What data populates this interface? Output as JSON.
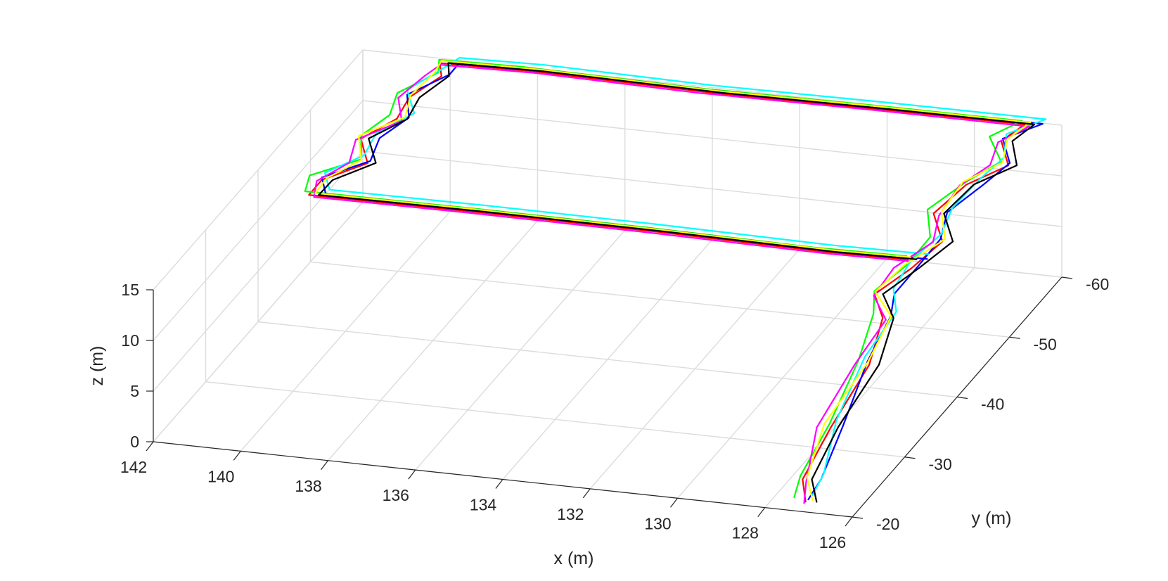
{
  "chart_data": {
    "type": "line",
    "dimensions": 3,
    "xlabel": "x (m)",
    "ylabel": "y (m)",
    "zlabel": "z (m)",
    "xlim": [
      126,
      142
    ],
    "ylim": [
      -60,
      -20
    ],
    "zlim": [
      0,
      15
    ],
    "x_ticks": [
      "142",
      "140",
      "138",
      "136",
      "134",
      "132",
      "130",
      "128",
      "126"
    ],
    "y_ticks": [
      "-60",
      "-50",
      "-40",
      "-30",
      "-20"
    ],
    "z_ticks": [
      "15",
      "10",
      "5",
      "0"
    ],
    "grid": true,
    "legend": "none",
    "series_colors": [
      "#ff0000",
      "#00ff00",
      "#0000ff",
      "#00ffff",
      "#ff00ff",
      "#ffff00",
      "#000000"
    ]
  }
}
